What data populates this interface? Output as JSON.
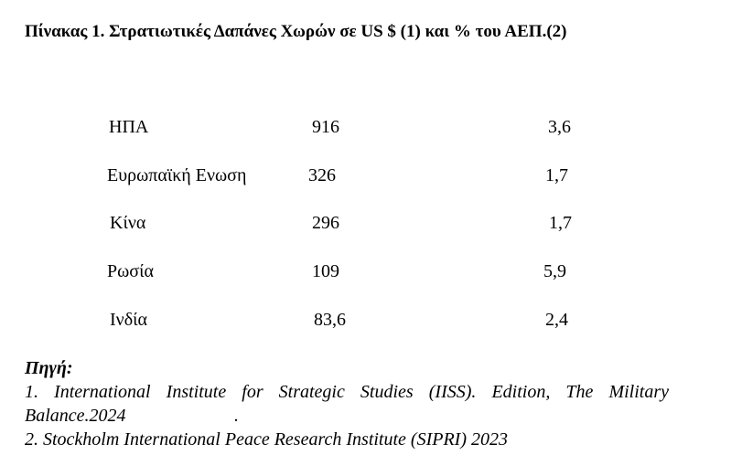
{
  "title": "Πίνακας 1. Στρατιωτικές Δαπάνες Χωρών σε US $ (1) και % του ΑΕΠ.(2)",
  "rows": [
    {
      "country": "ΗΠΑ",
      "spending": "916",
      "gdp_percent": "3,6"
    },
    {
      "country": "Ευρωπαϊκή Ενωση",
      "spending": "326",
      "gdp_percent": "1,7"
    },
    {
      "country": "Κίνα",
      "spending": "296",
      "gdp_percent": "1,7"
    },
    {
      "country": "Ρωσία",
      "spending": "109",
      "gdp_percent": "5,9"
    },
    {
      "country": "Ινδία",
      "spending": "83,6",
      "gdp_percent": "2,4"
    }
  ],
  "source": {
    "heading": "Πηγή:",
    "ref1": "1. International Institute for Strategic Studies (IISS). Edition, The Military Balance.2024",
    "ref1_trailing": ".",
    "ref2": "2. Stockholm International Peace Research Institute (SIPRI) 2023"
  }
}
